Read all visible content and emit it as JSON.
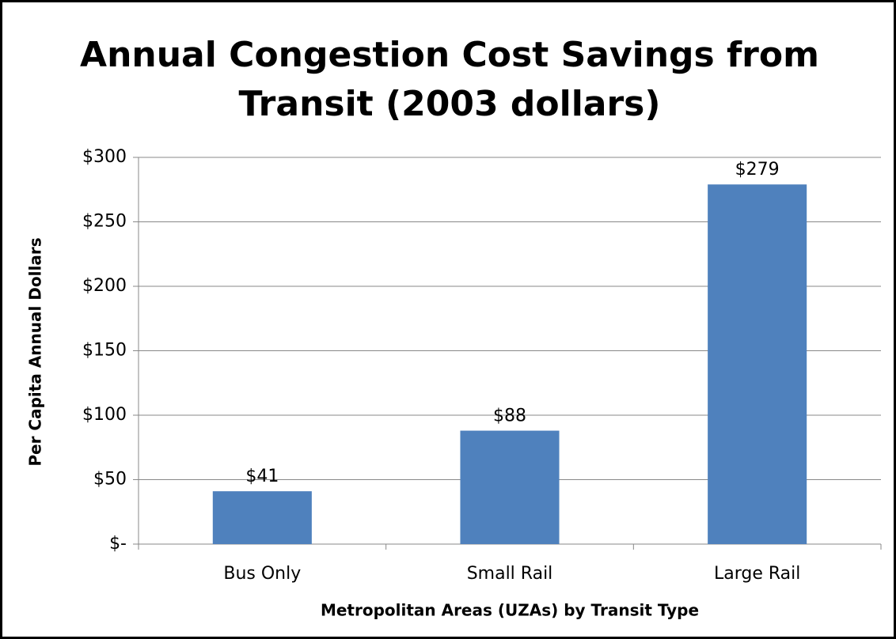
{
  "chart_data": {
    "type": "bar",
    "title": [
      "Annual Congestion Cost Savings from",
      "Transit (2003 dollars)"
    ],
    "x_label": "Metropolitan  Areas (UZAs) by Transit Type",
    "y_label": "Per Capita Annual Dollars",
    "categories": [
      "Bus Only",
      "Small Rail",
      "Large Rail"
    ],
    "values": [
      41,
      88,
      279
    ],
    "value_labels": [
      "$41",
      "$88",
      "$279"
    ],
    "color": "#4f81bd",
    "ylim": [
      0,
      300
    ],
    "yticks": [
      {
        "value": 0,
        "label": "$-"
      },
      {
        "value": 50,
        "label": "$50"
      },
      {
        "value": 100,
        "label": "$100"
      },
      {
        "value": 150,
        "label": "$150"
      },
      {
        "value": 200,
        "label": "$200"
      },
      {
        "value": 250,
        "label": "$250"
      },
      {
        "value": 300,
        "label": "$300"
      }
    ],
    "grid": true
  }
}
